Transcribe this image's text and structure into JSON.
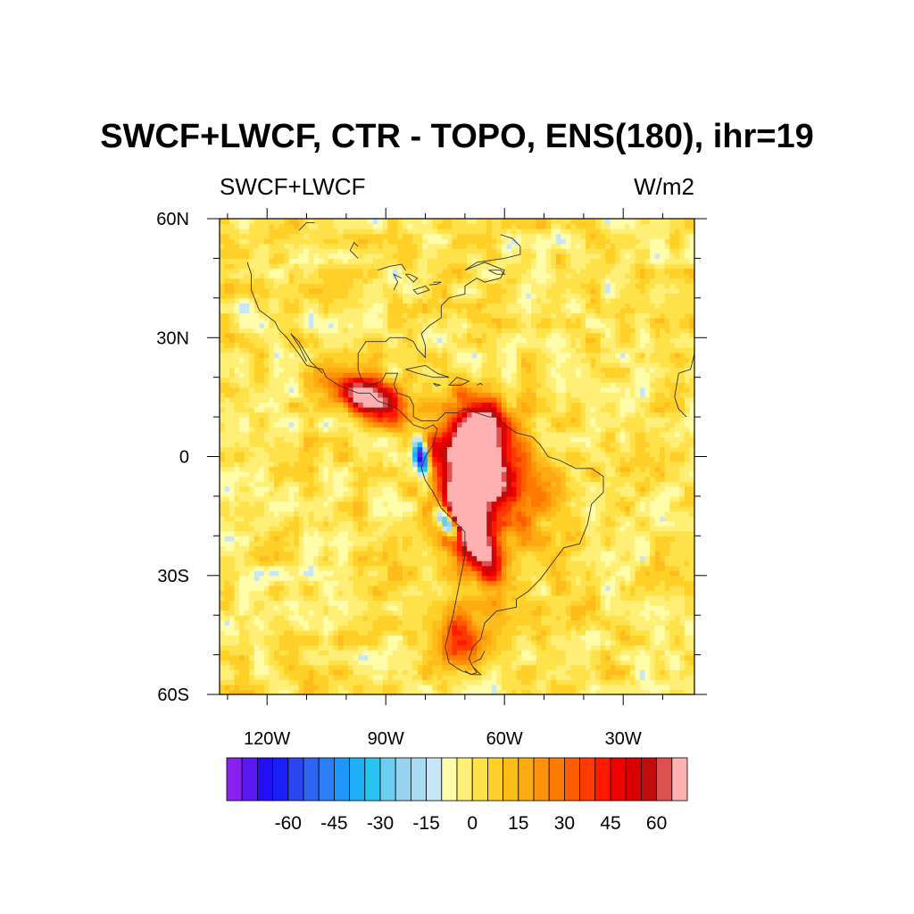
{
  "chart_data": {
    "type": "heatmap",
    "title": "SWCF+LWCF, CTR - TOPO, ENS(180), ihr=19",
    "left_string": "SWCF+LWCF",
    "right_string": "W/m2",
    "lon_range": [
      -132,
      -12
    ],
    "lat_range": [
      -60,
      60
    ],
    "x_ticks": [
      {
        "lon": -120,
        "label": "120W"
      },
      {
        "lon": -90,
        "label": "90W"
      },
      {
        "lon": -60,
        "label": "60W"
      },
      {
        "lon": -30,
        "label": "30W"
      }
    ],
    "y_ticks": [
      {
        "lat": 60,
        "label": "60N"
      },
      {
        "lat": 30,
        "label": "30N"
      },
      {
        "lat": 0,
        "label": "0"
      },
      {
        "lat": -30,
        "label": "30S"
      },
      {
        "lat": -60,
        "label": "60S"
      }
    ],
    "colorbar": {
      "levels": [
        -75,
        -70,
        -65,
        -60,
        -55,
        -50,
        -45,
        -40,
        -35,
        -30,
        -25,
        -20,
        -15,
        -10,
        -5,
        0,
        5,
        10,
        15,
        20,
        25,
        30,
        35,
        40,
        45,
        50,
        55,
        60,
        65,
        70
      ],
      "labels": [
        "-60",
        "-45",
        "-30",
        "-15",
        "0",
        "15",
        "30",
        "45",
        "60"
      ],
      "label_values": [
        -60,
        -45,
        -30,
        -15,
        0,
        15,
        30,
        45,
        60
      ],
      "colors": [
        "#8a20ee",
        "#5a18f0",
        "#2210f2",
        "#1a1ff8",
        "#2a46f0",
        "#2e64f2",
        "#2a7ff5",
        "#1e96fa",
        "#1fb0f8",
        "#2ac4f0",
        "#6ccdef",
        "#96d3ef",
        "#a8dcf2",
        "#c7e7f6",
        "#fffcaa",
        "#ffef76",
        "#ffe24a",
        "#ffd028",
        "#ffbd1d",
        "#ffaa10",
        "#ff9208",
        "#ff7a00",
        "#ff5c00",
        "#ff3a00",
        "#ff1a00",
        "#f00000",
        "#d80000",
        "#c00c0c",
        "#dc5050",
        "#ffb0b0"
      ]
    },
    "features": [
      {
        "name": "mexico-central-america-max",
        "lon": -94,
        "lat": 14,
        "value": 72
      },
      {
        "name": "northern-andes-max",
        "lon": -67,
        "lat": 7,
        "value": 72
      },
      {
        "name": "amazon-max",
        "lon": -67,
        "lat": -6,
        "value": 72
      },
      {
        "name": "central-andes-max",
        "lon": -68,
        "lat": -22,
        "value": 72
      },
      {
        "name": "patagonia-max",
        "lon": -72,
        "lat": -47,
        "value": 50
      },
      {
        "name": "ecuador-coast-min",
        "lon": -81,
        "lat": 1,
        "value": -70
      },
      {
        "name": "peru-coast-min",
        "lon": -74,
        "lat": -18,
        "value": -60
      }
    ]
  }
}
